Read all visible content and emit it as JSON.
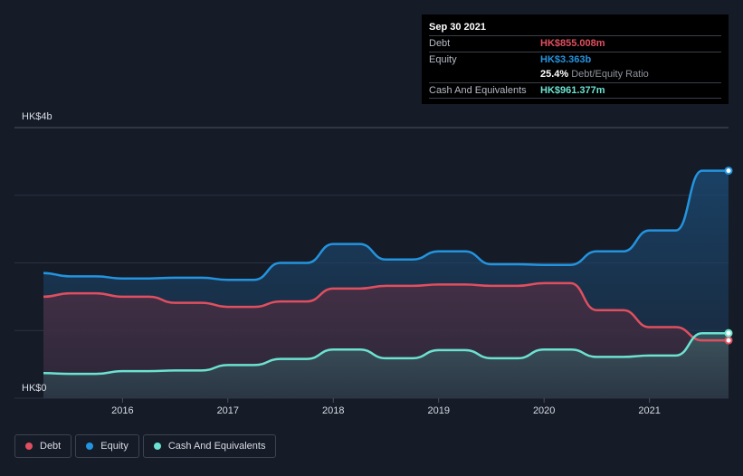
{
  "tooltip": {
    "date": "Sep 30 2021",
    "debt_label": "Debt",
    "debt_value": "HK$855.008m",
    "equity_label": "Equity",
    "equity_value": "HK$3.363b",
    "ratio_value": "25.4%",
    "ratio_label": "Debt/Equity Ratio",
    "cash_label": "Cash And Equivalents",
    "cash_value": "HK$961.377m"
  },
  "legend": {
    "debt": "Debt",
    "equity": "Equity",
    "cash": "Cash And Equivalents"
  },
  "colors": {
    "debt": "#e04f5f",
    "equity": "#2394df",
    "cash": "#6ce2d0"
  },
  "chart_data": {
    "type": "area",
    "y_top_label": "HK$4b",
    "y_bottom_label": "HK$0",
    "ylim": [
      0,
      4.0
    ],
    "xlim": [
      2015.25,
      2021.75
    ],
    "x_ticks": [
      "2016",
      "2017",
      "2018",
      "2019",
      "2020",
      "2021"
    ],
    "grid": true,
    "legend_position": "bottom-left",
    "series": [
      {
        "name": "Equity",
        "x": [
          2015.25,
          2015.5,
          2015.75,
          2016.0,
          2016.25,
          2016.5,
          2016.75,
          2017.0,
          2017.25,
          2017.5,
          2017.75,
          2018.0,
          2018.25,
          2018.5,
          2018.75,
          2019.0,
          2019.25,
          2019.5,
          2019.75,
          2020.0,
          2020.25,
          2020.5,
          2020.75,
          2021.0,
          2021.25,
          2021.5,
          2021.75
        ],
        "values": [
          1.85,
          1.8,
          1.8,
          1.77,
          1.77,
          1.78,
          1.78,
          1.75,
          1.75,
          2.0,
          2.0,
          2.28,
          2.28,
          2.05,
          2.05,
          2.17,
          2.17,
          1.98,
          1.98,
          1.97,
          1.97,
          2.17,
          2.17,
          2.48,
          2.48,
          3.363,
          3.363
        ]
      },
      {
        "name": "Debt",
        "x": [
          2015.25,
          2015.5,
          2015.75,
          2016.0,
          2016.25,
          2016.5,
          2016.75,
          2017.0,
          2017.25,
          2017.5,
          2017.75,
          2018.0,
          2018.25,
          2018.5,
          2018.75,
          2019.0,
          2019.25,
          2019.5,
          2019.75,
          2020.0,
          2020.25,
          2020.5,
          2020.75,
          2021.0,
          2021.25,
          2021.5,
          2021.75
        ],
        "values": [
          1.5,
          1.55,
          1.55,
          1.5,
          1.5,
          1.41,
          1.41,
          1.35,
          1.35,
          1.43,
          1.43,
          1.62,
          1.62,
          1.66,
          1.66,
          1.68,
          1.68,
          1.66,
          1.66,
          1.7,
          1.7,
          1.3,
          1.3,
          1.05,
          1.05,
          0.855,
          0.855
        ]
      },
      {
        "name": "Cash And Equivalents",
        "x": [
          2015.25,
          2015.5,
          2015.75,
          2016.0,
          2016.25,
          2016.5,
          2016.75,
          2017.0,
          2017.25,
          2017.5,
          2017.75,
          2018.0,
          2018.25,
          2018.5,
          2018.75,
          2019.0,
          2019.25,
          2019.5,
          2019.75,
          2020.0,
          2020.25,
          2020.5,
          2020.75,
          2021.0,
          2021.25,
          2021.5,
          2021.75
        ],
        "values": [
          0.37,
          0.36,
          0.36,
          0.4,
          0.4,
          0.41,
          0.41,
          0.49,
          0.49,
          0.58,
          0.58,
          0.72,
          0.72,
          0.59,
          0.59,
          0.71,
          0.71,
          0.59,
          0.59,
          0.72,
          0.72,
          0.61,
          0.61,
          0.63,
          0.63,
          0.961,
          0.961
        ]
      }
    ]
  }
}
